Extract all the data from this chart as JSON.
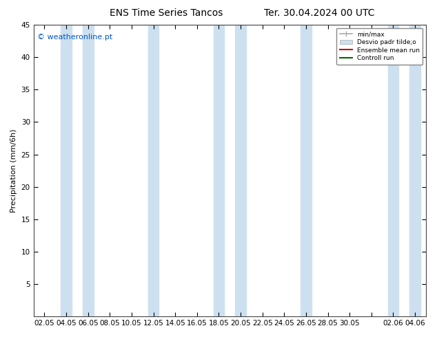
{
  "title_left": "ENS Time Series Tancos",
  "title_right": "Ter. 30.04.2024 00 UTC",
  "ylabel": "Precipitation (mm/6h)",
  "ylim": [
    0,
    45
  ],
  "yticks": [
    5,
    10,
    15,
    20,
    25,
    30,
    35,
    40,
    45
  ],
  "xtick_labels": [
    "02.05",
    "04.05",
    "06.05",
    "08.05",
    "10.05",
    "12.05",
    "14.05",
    "16.05",
    "18.05",
    "20.05",
    "22.05",
    "24.05",
    "26.05",
    "28.05",
    "30.05",
    "",
    "02.06",
    "04.06"
  ],
  "background_color": "#ffffff",
  "plot_bg_color": "#ffffff",
  "band_color": "#cce0f0",
  "legend_entries": [
    "min/max",
    "Desvio padr tilde;o",
    "Ensemble mean run",
    "Controll run"
  ],
  "legend_colors": [
    "#aaaaaa",
    "#cce0f0",
    "#ff0000",
    "#008800"
  ],
  "watermark": "© weatheronline.pt",
  "watermark_color": "#0055cc",
  "title_fontsize": 10,
  "label_fontsize": 8,
  "tick_fontsize": 7.5
}
